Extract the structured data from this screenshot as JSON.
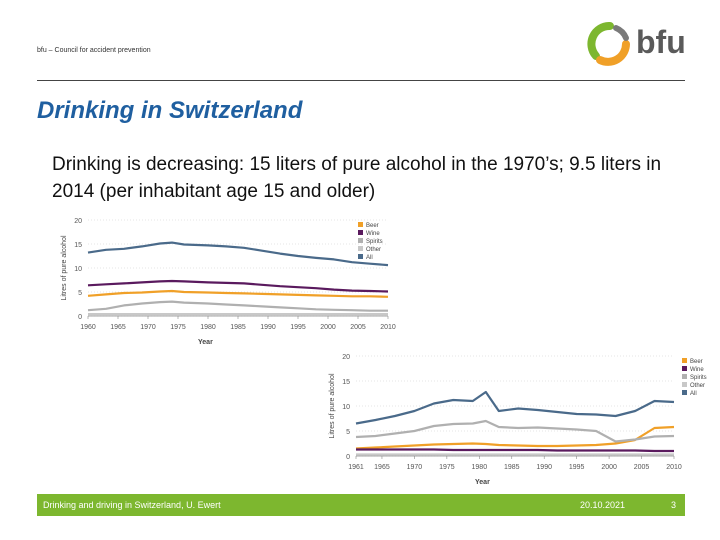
{
  "header": {
    "org": "bfu – Council for accident prevention",
    "logo_text": "bfu",
    "title": "Drinking in Switzerland",
    "subtitle": "Drinking is decreasing: 15 liters of pure alcohol in the 1970’s; 9.5 liters in 2014 (per inhabitant age 15 and older)"
  },
  "footer": {
    "left": "Drinking and driving in Switzerland, U. Ewert",
    "date": "20.10.2021",
    "page": "3"
  },
  "colors": {
    "title": "#1f5fa0",
    "footer": "#7db72f",
    "beer": "#f0a028",
    "wine": "#5a1a5e",
    "spirits": "#b0b0b0",
    "other": "#c8c8c8",
    "all": "#4a6a8a"
  },
  "chart_data": [
    {
      "type": "line",
      "ylabel": "Litres of pure alcohol",
      "xlabel": "Year",
      "ylim": [
        0,
        20
      ],
      "xlim": [
        1960,
        2010
      ],
      "yticks": [
        "0",
        "5",
        "10",
        "15",
        "20"
      ],
      "xticks": [
        "1960",
        "1965",
        "1970",
        "1975",
        "1980",
        "1985",
        "1990",
        "1995",
        "2000",
        "2005",
        "2010"
      ],
      "legend": [
        "Beer",
        "Wine",
        "Spirits",
        "Other",
        "All"
      ],
      "x": [
        1960,
        1963,
        1966,
        1969,
        1972,
        1974,
        1976,
        1980,
        1983,
        1986,
        1989,
        1992,
        1995,
        1998,
        2001,
        2004,
        2007,
        2010
      ],
      "series": [
        {
          "name": "Beer",
          "values": [
            4.2,
            4.5,
            4.8,
            4.9,
            5.1,
            5.2,
            5.0,
            4.9,
            4.8,
            4.7,
            4.6,
            4.5,
            4.4,
            4.3,
            4.2,
            4.1,
            4.1,
            4.0
          ]
        },
        {
          "name": "Wine",
          "values": [
            6.4,
            6.6,
            6.8,
            7.0,
            7.2,
            7.3,
            7.2,
            7.0,
            6.9,
            6.8,
            6.5,
            6.2,
            6.0,
            5.8,
            5.5,
            5.3,
            5.2,
            5.1
          ]
        },
        {
          "name": "Spirits",
          "values": [
            1.2,
            1.5,
            2.2,
            2.6,
            2.9,
            3.0,
            2.8,
            2.6,
            2.4,
            2.2,
            2.0,
            1.8,
            1.6,
            1.4,
            1.3,
            1.2,
            1.1,
            1.1
          ]
        },
        {
          "name": "Other",
          "values": [
            0.4,
            0.4,
            0.4,
            0.4,
            0.4,
            0.4,
            0.4,
            0.4,
            0.4,
            0.4,
            0.4,
            0.4,
            0.4,
            0.4,
            0.4,
            0.4,
            0.4,
            0.4
          ]
        },
        {
          "name": "All",
          "values": [
            13.2,
            13.8,
            14.0,
            14.5,
            15.1,
            15.3,
            14.9,
            14.7,
            14.5,
            14.2,
            13.6,
            13.0,
            12.5,
            12.1,
            11.8,
            11.2,
            10.9,
            10.6
          ]
        }
      ]
    },
    {
      "type": "line",
      "ylabel": "Litres of pure alcohol",
      "xlabel": "Year",
      "ylim": [
        0,
        20
      ],
      "xlim": [
        1961,
        2010
      ],
      "yticks": [
        "0",
        "5",
        "10",
        "15",
        "20"
      ],
      "xticks": [
        "1961",
        "1965",
        "1970",
        "1975",
        "1980",
        "1985",
        "1990",
        "1995",
        "2000",
        "2005",
        "2010"
      ],
      "legend": [
        "Beer",
        "Wine",
        "Spirits",
        "Other",
        "All"
      ],
      "x": [
        1961,
        1964,
        1967,
        1970,
        1973,
        1976,
        1979,
        1981,
        1983,
        1986,
        1989,
        1992,
        1995,
        1998,
        2001,
        2004,
        2007,
        2010
      ],
      "series": [
        {
          "name": "Beer",
          "values": [
            1.5,
            1.7,
            1.9,
            2.1,
            2.3,
            2.4,
            2.5,
            2.4,
            2.2,
            2.1,
            2.0,
            2.0,
            2.1,
            2.2,
            2.5,
            3.2,
            5.6,
            5.8
          ]
        },
        {
          "name": "Wine",
          "values": [
            1.3,
            1.3,
            1.3,
            1.3,
            1.3,
            1.2,
            1.2,
            1.2,
            1.2,
            1.2,
            1.2,
            1.1,
            1.1,
            1.1,
            1.1,
            1.1,
            1.0,
            1.0
          ]
        },
        {
          "name": "Spirits",
          "values": [
            3.8,
            4.0,
            4.5,
            5.0,
            6.0,
            6.4,
            6.5,
            7.0,
            5.8,
            5.6,
            5.7,
            5.5,
            5.3,
            5.0,
            2.9,
            3.3,
            3.9,
            4.0
          ]
        },
        {
          "name": "Other",
          "values": [
            0.3,
            0.3,
            0.3,
            0.3,
            0.3,
            0.3,
            0.3,
            0.3,
            0.3,
            0.3,
            0.3,
            0.3,
            0.3,
            0.3,
            0.3,
            0.3,
            0.3,
            0.3
          ]
        },
        {
          "name": "All",
          "values": [
            6.5,
            7.2,
            8.0,
            9.0,
            10.5,
            11.2,
            11.0,
            12.8,
            9.0,
            9.5,
            9.2,
            8.8,
            8.4,
            8.3,
            8.0,
            9.0,
            11.0,
            10.8
          ]
        }
      ]
    }
  ]
}
